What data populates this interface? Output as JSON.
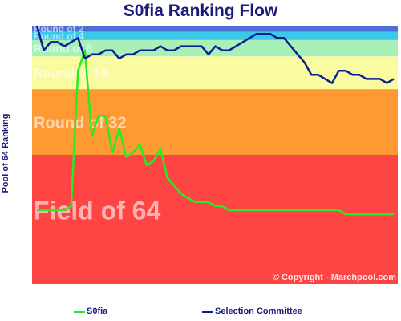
{
  "chart_data": {
    "type": "line",
    "title": "S0fia Ranking Flow",
    "ylabel": "Pool of 64 Ranking",
    "ylim": [
      64,
      1
    ],
    "bands": [
      {
        "label": "Round of 2",
        "from": 1,
        "to": 2.5,
        "color": "#4b6fd6"
      },
      {
        "label": "Round of 4",
        "from": 2.5,
        "to": 4.5,
        "color": "#3cc8ea"
      },
      {
        "label": "Round of 8",
        "from": 4.5,
        "to": 8.5,
        "color": "#a9f0b8"
      },
      {
        "label": "Round of 16",
        "from": 8.5,
        "to": 16.5,
        "color": "#fafaa0"
      },
      {
        "label": "Round of 32",
        "from": 16.5,
        "to": 32.5,
        "color": "#ff9933"
      },
      {
        "label": "Field of 64",
        "from": 32.5,
        "to": 64,
        "color": "#ff4444"
      }
    ],
    "copyright": "© Copyright - Marchpool.com",
    "series": [
      {
        "name": "S0fia",
        "color": "#22ee22",
        "values": [
          46,
          46,
          46,
          46,
          46,
          45,
          12,
          7,
          28,
          23,
          23,
          32,
          26,
          33,
          32,
          30,
          35,
          34,
          31,
          38,
          40,
          42,
          43,
          44,
          44,
          44,
          45,
          45,
          46,
          46,
          46,
          46,
          46,
          46,
          46,
          46,
          46,
          46,
          46,
          46,
          46,
          46,
          46,
          46,
          46,
          47,
          47,
          47,
          47,
          47,
          47,
          47,
          47
        ]
      },
      {
        "name": "Selection Committee",
        "color": "#0a1f8f",
        "values": [
          1,
          7,
          5,
          5,
          6,
          5,
          4,
          9,
          8,
          8,
          7,
          7,
          9,
          8,
          8,
          7,
          7,
          7,
          6,
          7,
          7,
          6,
          6,
          6,
          6,
          8,
          6,
          7,
          7,
          6,
          5,
          4,
          3,
          3,
          3,
          4,
          4,
          6,
          8,
          10,
          13,
          13,
          14,
          15,
          12,
          12,
          13,
          13,
          14,
          14,
          14,
          15,
          14
        ]
      }
    ]
  }
}
